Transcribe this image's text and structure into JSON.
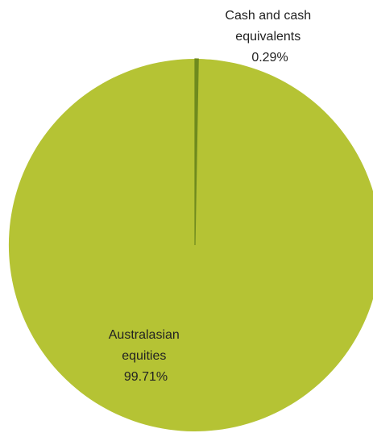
{
  "chart_data": {
    "type": "pie",
    "slices": [
      {
        "label_lines": [
          "Cash and cash",
          "equivalents",
          "0.29%"
        ],
        "name": "Cash and cash equivalents",
        "value": 0.29,
        "value_label": "0.29%",
        "color": "#6f8a1e"
      },
      {
        "label_lines": [
          "Australasian",
          "equities",
          "99.71%"
        ],
        "name": "Australasian equities",
        "value": 99.71,
        "value_label": "99.71%",
        "color": "#b5c334"
      }
    ],
    "start_angle": "12 o'clock",
    "direction": "clockwise",
    "legend": "none",
    "title": ""
  }
}
